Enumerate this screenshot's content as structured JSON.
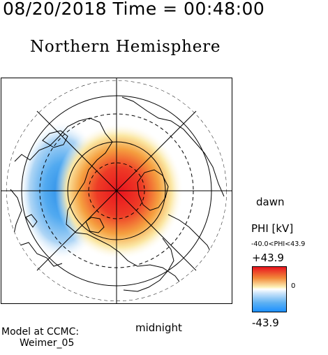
{
  "header": {
    "datetime": "08/20/2018 Time = 00:48:00"
  },
  "title": "Northern Hemisphere",
  "map": {
    "orientation_labels": {
      "right": "dawn",
      "bottom": "midnight"
    },
    "potential_pattern": {
      "positive_cell": "red, centered near pole slightly toward dawn side",
      "negative_cell": "blue, dusk side crescent"
    }
  },
  "legend": {
    "quantity": "PHI [kV]",
    "range_text": "-40.0<PHI<43.9",
    "max_label": "+43.9",
    "min_label": "-43.9",
    "zero_label": "0",
    "colors": {
      "max": "#e8141e",
      "mid": "#ffffff",
      "min": "#1e90ff"
    }
  },
  "credit": {
    "line1": "Model at CCMC:",
    "line2": "Weimer_05"
  }
}
